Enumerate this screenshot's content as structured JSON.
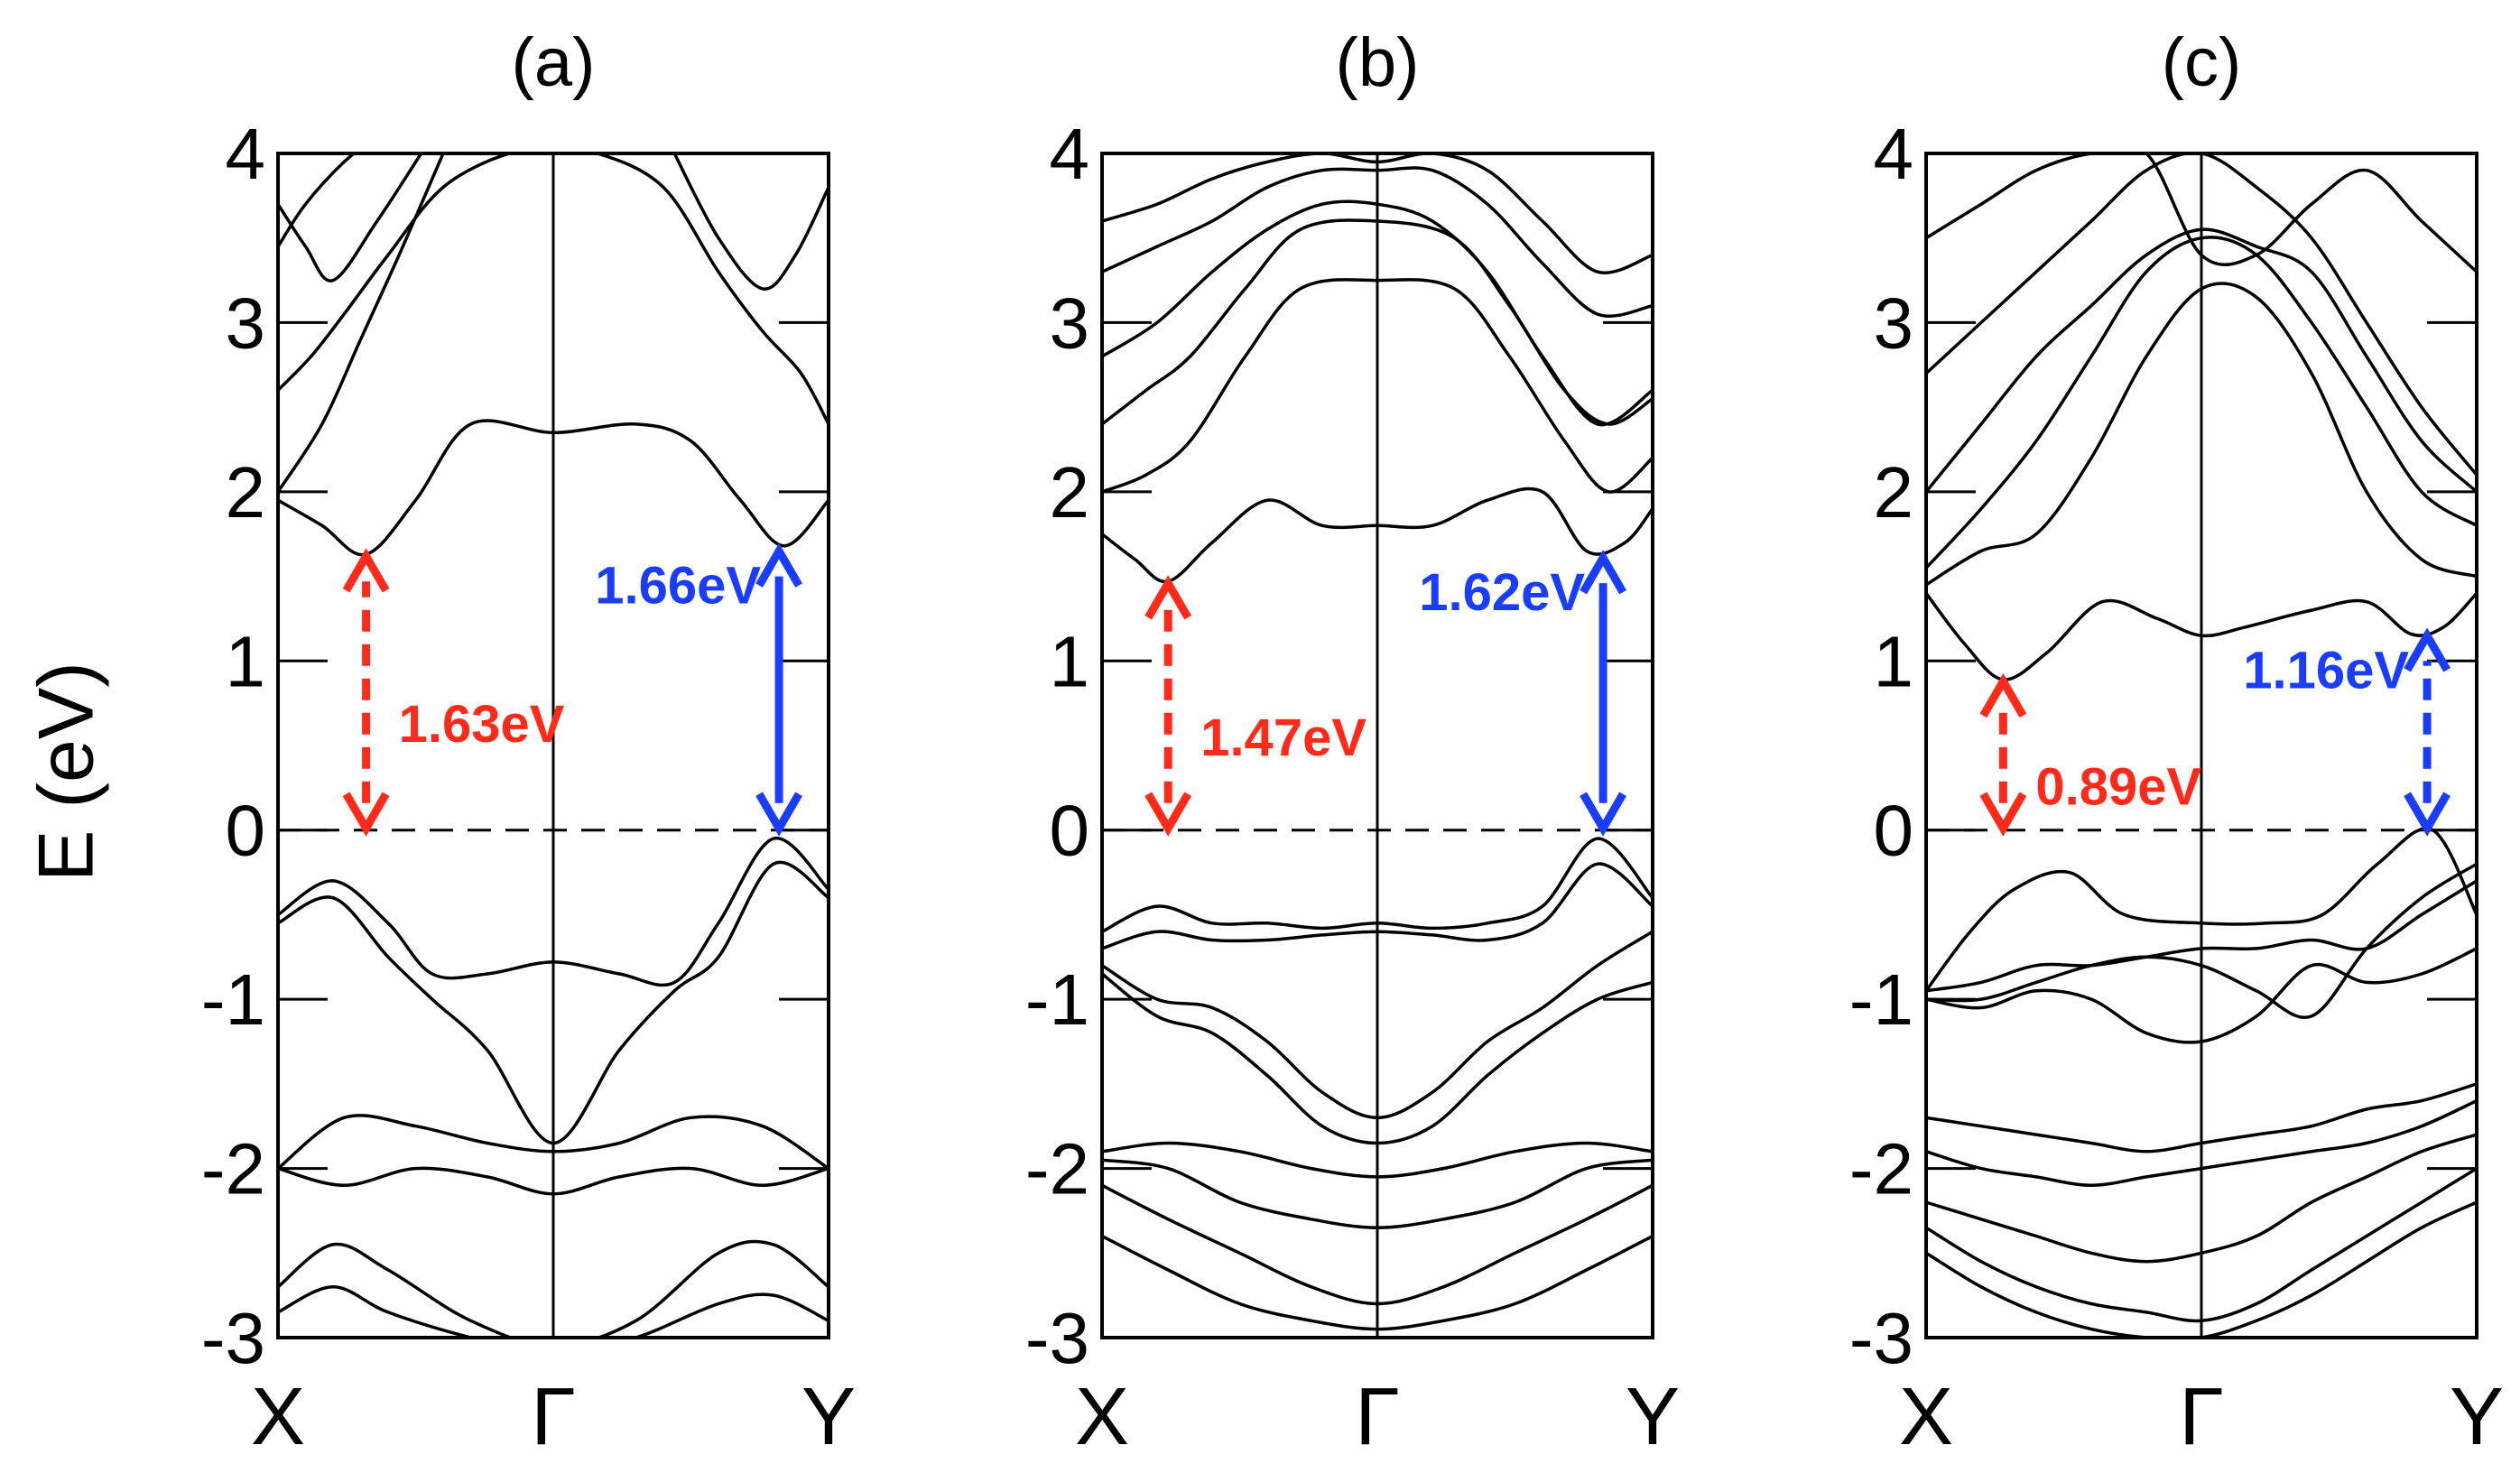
{
  "chart_data": [
    {
      "type": "line",
      "title": "(a)",
      "ylabel": "E (eV)",
      "ylim": [
        -3,
        4
      ],
      "yticks": [
        "4",
        "3",
        "2",
        "1",
        "0",
        "-1",
        "-2",
        "-3"
      ],
      "xticks": [
        "X",
        "Γ",
        "Y"
      ],
      "gaps": [
        {
          "value_label": "1.63eV",
          "color": "#ff2a1a",
          "style": "dashed",
          "k": 0.16,
          "from": 0,
          "to": 1.63
        },
        {
          "value_label": "1.66eV",
          "color": "#1a3cff",
          "style": "solid",
          "k": 0.91,
          "from": 0,
          "to": 1.66
        }
      ],
      "series": [
        {
          "x": [
            0,
            0.08,
            0.16,
            0.25,
            0.35,
            0.5,
            0.65,
            0.75,
            0.84,
            0.92,
            1
          ],
          "y": [
            1.95,
            1.8,
            1.63,
            1.95,
            2.4,
            2.35,
            2.4,
            2.3,
            1.95,
            1.68,
            1.95
          ]
        },
        {
          "x": [
            0,
            0.06,
            0.12,
            0.2,
            0.3,
            0.42,
            0.5,
            0.58,
            0.7,
            0.8,
            0.88,
            0.95,
            1
          ],
          "y": [
            2.6,
            2.8,
            3.05,
            3.4,
            3.8,
            4.0,
            4.0,
            4.0,
            3.8,
            3.3,
            2.95,
            2.7,
            2.4
          ]
        },
        {
          "x": [
            0,
            0.08,
            0.15,
            0.22,
            0.3
          ],
          "y": [
            2.0,
            2.4,
            2.9,
            3.4,
            4.0
          ]
        },
        {
          "x": [
            0,
            0.05,
            0.1,
            0.18,
            0.26
          ],
          "y": [
            3.7,
            3.45,
            3.25,
            3.6,
            4.0
          ]
        },
        {
          "x": [
            0.72,
            0.8,
            0.88,
            0.94,
            1
          ],
          "y": [
            4.0,
            3.5,
            3.2,
            3.4,
            3.8
          ]
        },
        {
          "x": [
            0,
            0.05,
            0.12,
            0.18
          ],
          "y": [
            3.45,
            3.7,
            3.95,
            4.1
          ]
        },
        {
          "x": [
            0,
            0.1,
            0.2,
            0.28,
            0.38,
            0.5,
            0.62,
            0.72,
            0.8,
            0.9,
            1
          ],
          "y": [
            -0.5,
            -0.3,
            -0.55,
            -0.85,
            -0.85,
            -0.78,
            -0.85,
            -0.9,
            -0.55,
            -0.05,
            -0.35
          ]
        },
        {
          "x": [
            0,
            0.1,
            0.2,
            0.28,
            0.38,
            0.5,
            0.62,
            0.72,
            0.8,
            0.9,
            1
          ],
          "y": [
            -0.55,
            -0.4,
            -0.75,
            -1.0,
            -1.3,
            -1.85,
            -1.3,
            -0.95,
            -0.75,
            -0.2,
            -0.4
          ]
        },
        {
          "x": [
            0,
            0.12,
            0.25,
            0.38,
            0.5,
            0.62,
            0.75,
            0.88,
            1
          ],
          "y": [
            -2.0,
            -1.7,
            -1.75,
            -1.85,
            -1.9,
            -1.85,
            -1.7,
            -1.75,
            -2.0
          ]
        },
        {
          "x": [
            0,
            0.12,
            0.25,
            0.38,
            0.5,
            0.62,
            0.75,
            0.88,
            1
          ],
          "y": [
            -2.0,
            -2.1,
            -2.0,
            -2.05,
            -2.15,
            -2.05,
            -2.0,
            -2.1,
            -2.0
          ]
        },
        {
          "x": [
            0,
            0.1,
            0.2,
            0.35,
            0.5,
            0.65,
            0.8,
            0.9,
            1
          ],
          "y": [
            -2.7,
            -2.45,
            -2.6,
            -2.9,
            -3.05,
            -2.9,
            -2.5,
            -2.45,
            -2.7
          ]
        },
        {
          "x": [
            0,
            0.1,
            0.2,
            0.35,
            0.5,
            0.65,
            0.8,
            0.9,
            1
          ],
          "y": [
            -2.85,
            -2.7,
            -2.85,
            -3.0,
            -3.1,
            -3.0,
            -2.8,
            -2.75,
            -2.9
          ]
        }
      ]
    },
    {
      "type": "line",
      "title": "(b)",
      "ylim": [
        -3,
        4
      ],
      "yticks": [
        "4",
        "3",
        "2",
        "1",
        "0",
        "-1",
        "-2",
        "-3"
      ],
      "xticks": [
        "X",
        "Γ",
        "Y"
      ],
      "gaps": [
        {
          "value_label": "1.47eV",
          "color": "#ff2a1a",
          "style": "dashed",
          "k": 0.12,
          "from": 0,
          "to": 1.47
        },
        {
          "value_label": "1.62eV",
          "color": "#1a3cff",
          "style": "solid",
          "k": 0.91,
          "from": 0,
          "to": 1.62
        }
      ],
      "series": [
        {
          "x": [
            0,
            0.06,
            0.12,
            0.2,
            0.3,
            0.4,
            0.5,
            0.6,
            0.7,
            0.8,
            0.88,
            0.95,
            1
          ],
          "y": [
            1.75,
            1.6,
            1.47,
            1.7,
            1.95,
            1.8,
            1.8,
            1.8,
            1.95,
            2.0,
            1.65,
            1.7,
            1.9
          ]
        },
        {
          "x": [
            0,
            0.08,
            0.16,
            0.26,
            0.36,
            0.5,
            0.64,
            0.74,
            0.84,
            0.92,
            1
          ],
          "y": [
            2.0,
            2.1,
            2.3,
            2.8,
            3.2,
            3.25,
            3.2,
            2.8,
            2.3,
            2.0,
            2.2
          ]
        },
        {
          "x": [
            0,
            0.08,
            0.16,
            0.26,
            0.36,
            0.5,
            0.64,
            0.74,
            0.84,
            0.92,
            1
          ],
          "y": [
            2.4,
            2.6,
            2.8,
            3.2,
            3.55,
            3.6,
            3.5,
            3.1,
            2.6,
            2.4,
            2.55
          ]
        },
        {
          "x": [
            0,
            0.1,
            0.2,
            0.3,
            0.4,
            0.5,
            0.6,
            0.7,
            0.8,
            0.9,
            1
          ],
          "y": [
            2.8,
            3.0,
            3.3,
            3.55,
            3.7,
            3.7,
            3.6,
            3.3,
            2.8,
            2.4,
            2.6
          ]
        },
        {
          "x": [
            0,
            0.1,
            0.2,
            0.3,
            0.4,
            0.5,
            0.6,
            0.7,
            0.8,
            0.9,
            1
          ],
          "y": [
            3.3,
            3.45,
            3.6,
            3.8,
            3.9,
            3.9,
            3.9,
            3.7,
            3.35,
            3.05,
            3.1
          ]
        },
        {
          "x": [
            0,
            0.1,
            0.2,
            0.3,
            0.4,
            0.5,
            0.6,
            0.7,
            0.8,
            0.9,
            1
          ],
          "y": [
            3.6,
            3.7,
            3.85,
            3.95,
            4.0,
            3.95,
            4.0,
            3.9,
            3.6,
            3.3,
            3.4
          ]
        },
        {
          "x": [
            0,
            0.1,
            0.2,
            0.3,
            0.4,
            0.5,
            0.6,
            0.7,
            0.8,
            0.9,
            1
          ],
          "y": [
            -0.6,
            -0.45,
            -0.55,
            -0.55,
            -0.58,
            -0.55,
            -0.58,
            -0.55,
            -0.45,
            -0.05,
            -0.4
          ]
        },
        {
          "x": [
            0,
            0.1,
            0.2,
            0.3,
            0.4,
            0.5,
            0.6,
            0.7,
            0.8,
            0.9,
            1
          ],
          "y": [
            -0.7,
            -0.6,
            -0.65,
            -0.65,
            -0.62,
            -0.6,
            -0.62,
            -0.65,
            -0.55,
            -0.2,
            -0.45
          ]
        },
        {
          "x": [
            0,
            0.1,
            0.2,
            0.3,
            0.4,
            0.5,
            0.6,
            0.7,
            0.8,
            0.9,
            1
          ],
          "y": [
            -0.8,
            -1.0,
            -1.05,
            -1.25,
            -1.55,
            -1.7,
            -1.55,
            -1.25,
            -1.05,
            -0.8,
            -0.6
          ]
        },
        {
          "x": [
            0,
            0.1,
            0.2,
            0.3,
            0.4,
            0.5,
            0.6,
            0.7,
            0.8,
            0.9,
            1
          ],
          "y": [
            -0.85,
            -1.1,
            -1.2,
            -1.45,
            -1.75,
            -1.85,
            -1.75,
            -1.45,
            -1.2,
            -1.0,
            -0.9
          ]
        },
        {
          "x": [
            0,
            0.12,
            0.25,
            0.38,
            0.5,
            0.62,
            0.75,
            0.88,
            1
          ],
          "y": [
            -1.9,
            -1.85,
            -1.9,
            -2.0,
            -2.05,
            -2.0,
            -1.9,
            -1.85,
            -1.9
          ]
        },
        {
          "x": [
            0,
            0.12,
            0.25,
            0.38,
            0.5,
            0.62,
            0.75,
            0.88,
            1
          ],
          "y": [
            -1.95,
            -2.0,
            -2.2,
            -2.3,
            -2.35,
            -2.3,
            -2.2,
            -2.0,
            -1.95
          ]
        },
        {
          "x": [
            0,
            0.12,
            0.25,
            0.38,
            0.5,
            0.62,
            0.75,
            0.88,
            1
          ],
          "y": [
            -2.1,
            -2.3,
            -2.5,
            -2.7,
            -2.8,
            -2.7,
            -2.5,
            -2.3,
            -2.1
          ]
        },
        {
          "x": [
            0,
            0.12,
            0.25,
            0.38,
            0.5,
            0.62,
            0.75,
            0.88,
            1
          ],
          "y": [
            -2.4,
            -2.6,
            -2.8,
            -2.9,
            -2.95,
            -2.9,
            -2.8,
            -2.6,
            -2.4
          ]
        }
      ]
    },
    {
      "type": "line",
      "title": "(c)",
      "ylim": [
        -3,
        4
      ],
      "yticks": [
        "4",
        "3",
        "2",
        "1",
        "0",
        "-1",
        "-2",
        "-3"
      ],
      "xticks": [
        "X",
        "Γ",
        "Y"
      ],
      "gaps": [
        {
          "value_label": "0.89eV",
          "color": "#ff2a1a",
          "style": "dashed",
          "k": 0.14,
          "from": 0,
          "to": 0.89
        },
        {
          "value_label": "1.16eV",
          "color": "#1a3cff",
          "style": "dashed",
          "k": 0.91,
          "from": 0,
          "to": 1.16
        }
      ],
      "series": [
        {
          "x": [
            0,
            0.07,
            0.14,
            0.22,
            0.32,
            0.42,
            0.5,
            0.58,
            0.7,
            0.8,
            0.88,
            0.94,
            1
          ],
          "y": [
            1.4,
            1.1,
            0.89,
            1.05,
            1.35,
            1.25,
            1.15,
            1.2,
            1.3,
            1.35,
            1.16,
            1.2,
            1.4
          ]
        },
        {
          "x": [
            0,
            0.1,
            0.2,
            0.3,
            0.4,
            0.5,
            0.6,
            0.7,
            0.8,
            0.9,
            1
          ],
          "y": [
            1.45,
            1.65,
            1.75,
            2.2,
            2.8,
            3.2,
            3.15,
            2.7,
            2.0,
            1.6,
            1.5
          ]
        },
        {
          "x": [
            0,
            0.1,
            0.2,
            0.3,
            0.4,
            0.5,
            0.6,
            0.7,
            0.8,
            0.9,
            1
          ],
          "y": [
            1.55,
            1.9,
            2.3,
            2.8,
            3.3,
            3.5,
            3.4,
            3.0,
            2.5,
            2.0,
            1.8
          ]
        },
        {
          "x": [
            0,
            0.1,
            0.2,
            0.3,
            0.4,
            0.5,
            0.6,
            0.7,
            0.8,
            0.9,
            1
          ],
          "y": [
            2.0,
            2.4,
            2.8,
            3.1,
            3.4,
            3.55,
            3.45,
            3.3,
            2.8,
            2.3,
            2.0
          ]
        },
        {
          "x": [
            0,
            0.1,
            0.2,
            0.3,
            0.4,
            0.5,
            0.6,
            0.7,
            0.8,
            0.9,
            1
          ],
          "y": [
            2.7,
            3.0,
            3.3,
            3.6,
            3.9,
            4.0,
            3.8,
            3.5,
            3.0,
            2.5,
            2.1
          ]
        },
        {
          "x": [
            0,
            0.1,
            0.2,
            0.3,
            0.4,
            0.5,
            0.6,
            0.7,
            0.8,
            0.9,
            1
          ],
          "y": [
            3.5,
            3.7,
            3.9,
            4.0,
            4.0,
            3.4,
            3.4,
            3.7,
            3.9,
            3.6,
            3.3
          ]
        },
        {
          "x": [
            0,
            0.08,
            0.16,
            0.26,
            0.36,
            0.5,
            0.62,
            0.72,
            0.82,
            0.92,
            1
          ],
          "y": [
            -0.95,
            -0.6,
            -0.35,
            -0.25,
            -0.5,
            -0.55,
            -0.55,
            -0.5,
            -0.2,
            0.0,
            -0.5
          ]
        },
        {
          "x": [
            0,
            0.1,
            0.2,
            0.3,
            0.4,
            0.5,
            0.6,
            0.7,
            0.8,
            0.9,
            1
          ],
          "y": [
            -0.95,
            -0.9,
            -0.8,
            -0.8,
            -0.75,
            -0.7,
            -0.7,
            -0.65,
            -0.7,
            -0.5,
            -0.3
          ]
        },
        {
          "x": [
            0,
            0.1,
            0.2,
            0.3,
            0.4,
            0.5,
            0.6,
            0.7,
            0.8,
            0.9,
            1
          ],
          "y": [
            -1.0,
            -1.0,
            -0.9,
            -0.8,
            -0.75,
            -0.8,
            -0.95,
            -1.1,
            -0.7,
            -0.4,
            -0.2
          ]
        },
        {
          "x": [
            0,
            0.1,
            0.2,
            0.3,
            0.4,
            0.5,
            0.6,
            0.7,
            0.8,
            0.9,
            1
          ],
          "y": [
            -1.0,
            -1.05,
            -0.95,
            -1.0,
            -1.2,
            -1.25,
            -1.1,
            -0.8,
            -0.9,
            -0.85,
            -0.7
          ]
        },
        {
          "x": [
            0,
            0.1,
            0.2,
            0.3,
            0.4,
            0.5,
            0.6,
            0.7,
            0.8,
            0.9,
            1
          ],
          "y": [
            -1.7,
            -1.75,
            -1.8,
            -1.85,
            -1.9,
            -1.85,
            -1.8,
            -1.75,
            -1.65,
            -1.6,
            -1.5
          ]
        },
        {
          "x": [
            0,
            0.1,
            0.2,
            0.3,
            0.4,
            0.5,
            0.6,
            0.7,
            0.8,
            0.9,
            1
          ],
          "y": [
            -1.9,
            -2.0,
            -2.05,
            -2.1,
            -2.05,
            -2.0,
            -1.95,
            -1.9,
            -1.85,
            -1.75,
            -1.6
          ]
        },
        {
          "x": [
            0,
            0.1,
            0.2,
            0.3,
            0.4,
            0.5,
            0.6,
            0.7,
            0.8,
            0.9,
            1
          ],
          "y": [
            -2.2,
            -2.3,
            -2.4,
            -2.5,
            -2.55,
            -2.5,
            -2.4,
            -2.2,
            -2.05,
            -1.9,
            -1.8
          ]
        },
        {
          "x": [
            0,
            0.1,
            0.2,
            0.3,
            0.4,
            0.5,
            0.6,
            0.7,
            0.8,
            0.9,
            1
          ],
          "y": [
            -2.35,
            -2.55,
            -2.7,
            -2.8,
            -2.85,
            -2.9,
            -2.8,
            -2.6,
            -2.4,
            -2.2,
            -2.0
          ]
        },
        {
          "x": [
            0,
            0.1,
            0.2,
            0.3,
            0.4,
            0.5,
            0.6,
            0.7,
            0.8,
            0.9,
            1
          ],
          "y": [
            -2.5,
            -2.7,
            -2.85,
            -2.95,
            -3.0,
            -3.0,
            -2.9,
            -2.75,
            -2.55,
            -2.35,
            -2.2
          ]
        }
      ]
    }
  ]
}
